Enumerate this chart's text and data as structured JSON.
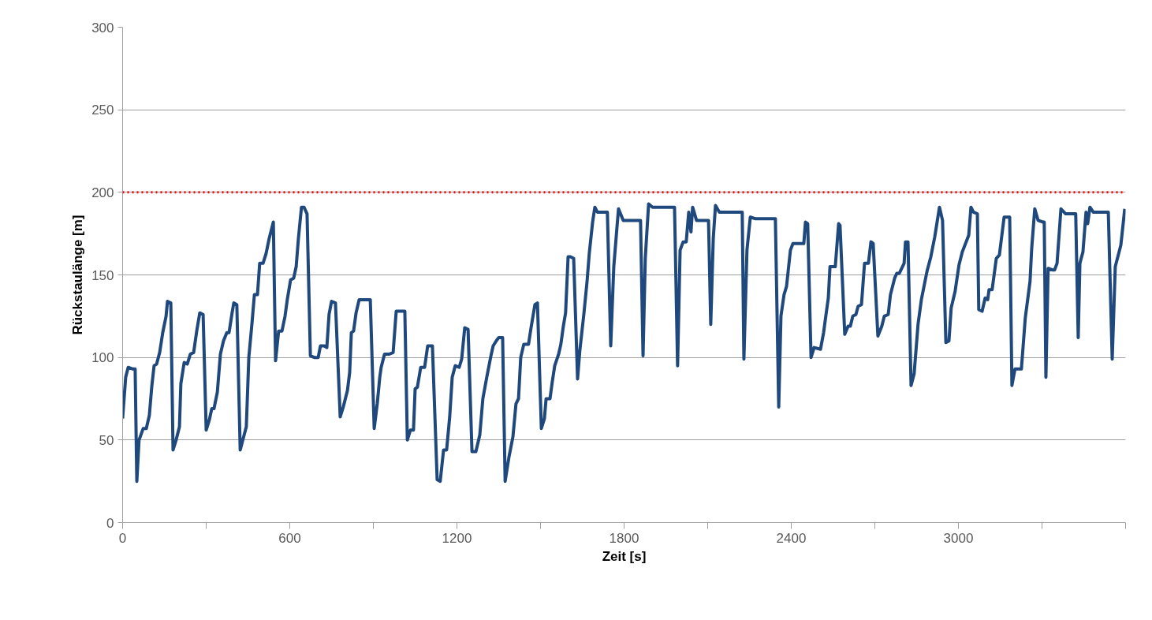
{
  "chart_data": {
    "type": "line",
    "xlabel": "Zeit [s]",
    "ylabel": "Rückstaulänge [m]",
    "xlim": [
      0,
      3600
    ],
    "ylim": [
      0,
      300
    ],
    "xticks": [
      0,
      {
        "value": 300,
        "label": null
      },
      600,
      {
        "value": 900,
        "label": null
      },
      1200,
      {
        "value": 1500,
        "label": null
      },
      1800,
      {
        "value": 2100,
        "label": null
      },
      2400,
      {
        "value": 2700,
        "label": null
      },
      3000,
      {
        "value": 3300,
        "label": null
      },
      {
        "value": 3600,
        "label": null
      }
    ],
    "yticks": [
      0,
      50,
      100,
      150,
      200,
      250,
      300
    ],
    "grid": "y",
    "marker": "none",
    "line_style": "solid",
    "ref_lines": [
      {
        "axis": "y",
        "value": 200,
        "label": null,
        "color": "#ff0000",
        "line_style": "dotted"
      }
    ],
    "series": [
      {
        "color": "#1f497d",
        "x": [
          0,
          11,
          20,
          37,
          45,
          51,
          59,
          74,
          85,
          96,
          105,
          113,
          122,
          133,
          144,
          156,
          161,
          173,
          181,
          192,
          204,
          209,
          221,
          232,
          243,
          255,
          266,
          277,
          289,
          300,
          311,
          320,
          328,
          340,
          351,
          362,
          374,
          382,
          393,
          399,
          410,
          422,
          433,
          444,
          453,
          464,
          473,
          484,
          492,
          504,
          515,
          526,
          541,
          549,
          560,
          572,
          583,
          591,
          603,
          614,
          623,
          631,
          642,
          651,
          662,
          674,
          688,
          702,
          710,
          724,
          733,
          741,
          750,
          764,
          781,
          792,
          807,
          815,
          821,
          829,
          838,
          849,
          860,
          872,
          889,
          903,
          914,
          923,
          928,
          940,
          957,
          971,
          982,
          999,
          1013,
          1022,
          1033,
          1044,
          1050,
          1058,
          1070,
          1084,
          1095,
          1112,
          1129,
          1140,
          1152,
          1163,
          1174,
          1183,
          1194,
          1208,
          1217,
          1228,
          1240,
          1254,
          1268,
          1282,
          1293,
          1307,
          1322,
          1330,
          1341,
          1350,
          1364,
          1373,
          1387,
          1401,
          1412,
          1421,
          1429,
          1440,
          1457,
          1466,
          1480,
          1489,
          1503,
          1514,
          1520,
          1534,
          1542,
          1551,
          1565,
          1573,
          1582,
          1590,
          1599,
          1607,
          1619,
          1633,
          1641,
          1656,
          1667,
          1675,
          1687,
          1695,
          1704,
          1721,
          1740,
          1752,
          1763,
          1774,
          1780,
          1797,
          1820,
          1842,
          1859,
          1868,
          1876,
          1888,
          1902,
          1924,
          1950,
          1981,
          1992,
          2001,
          2012,
          2023,
          2032,
          2040,
          2046,
          2060,
          2080,
          2103,
          2111,
          2120,
          2128,
          2142,
          2171,
          2202,
          2224,
          2230,
          2241,
          2253,
          2272,
          2301,
          2343,
          2355,
          2363,
          2374,
          2383,
          2397,
          2406,
          2425,
          2445,
          2451,
          2459,
          2471,
          2482,
          2505,
          2516,
          2524,
          2533,
          2539,
          2558,
          2570,
          2575,
          2592,
          2604,
          2612,
          2621,
          2632,
          2640,
          2652,
          2663,
          2677,
          2686,
          2694,
          2711,
          2725,
          2734,
          2748,
          2756,
          2771,
          2779,
          2788,
          2805,
          2810,
          2819,
          2830,
          2841,
          2855,
          2867,
          2887,
          2901,
          2915,
          2932,
          2943,
          2955,
          2966,
          2974,
          2988,
          3002,
          3014,
          3037,
          3045,
          3054,
          3068,
          3073,
          3085,
          3096,
          3105,
          3110,
          3121,
          3136,
          3147,
          3164,
          3175,
          3184,
          3192,
          3203,
          3226,
          3240,
          3257,
          3263,
          3274,
          3286,
          3303,
          3308,
          3314,
          3322,
          3337,
          3345,
          3354,
          3368,
          3385,
          3402,
          3421,
          3430,
          3436,
          3447,
          3458,
          3464,
          3472,
          3484,
          3504,
          3518,
          3538,
          3552,
          3563,
          3583,
          3597
        ],
        "values": [
          63,
          88,
          94,
          93,
          93,
          25,
          50,
          57,
          57,
          65,
          83,
          95,
          96,
          103,
          115,
          125,
          134,
          133,
          44,
          50,
          58,
          84,
          97,
          96,
          102,
          103,
          116,
          127,
          126,
          56,
          62,
          69,
          69,
          79,
          102,
          110,
          115,
          115,
          127,
          133,
          132,
          44,
          51,
          58,
          100,
          120,
          138,
          138,
          157,
          157,
          163,
          172,
          182,
          98,
          116,
          116,
          125,
          135,
          147,
          148,
          155,
          172,
          191,
          191,
          187,
          101,
          100,
          100,
          107,
          107,
          106,
          126,
          134,
          133,
          64,
          70,
          80,
          91,
          115,
          116,
          127,
          135,
          135,
          135,
          135,
          57,
          72,
          88,
          94,
          102,
          102,
          103,
          128,
          128,
          128,
          50,
          56,
          56,
          81,
          82,
          94,
          94,
          107,
          107,
          26,
          25,
          44,
          44,
          64,
          88,
          95,
          94,
          99,
          118,
          117,
          43,
          43,
          53,
          75,
          88,
          101,
          107,
          110,
          112,
          112,
          25,
          40,
          52,
          72,
          75,
          100,
          108,
          108,
          118,
          132,
          133,
          57,
          63,
          75,
          75,
          85,
          95,
          102,
          108,
          119,
          127,
          161,
          161,
          160,
          87,
          104,
          127,
          146,
          163,
          182,
          191,
          188,
          188,
          188,
          107,
          155,
          178,
          190,
          183,
          183,
          183,
          183,
          101,
          160,
          193,
          191,
          191,
          191,
          191,
          95,
          165,
          170,
          170,
          188,
          176,
          191,
          183,
          183,
          183,
          120,
          172,
          192,
          188,
          188,
          188,
          188,
          99,
          165,
          185,
          184,
          184,
          184,
          70,
          125,
          138,
          143,
          165,
          169,
          169,
          169,
          182,
          181,
          100,
          106,
          105,
          115,
          125,
          136,
          155,
          155,
          181,
          180,
          114,
          119,
          119,
          125,
          126,
          131,
          132,
          157,
          157,
          170,
          169,
          113,
          119,
          125,
          126,
          138,
          148,
          151,
          151,
          157,
          170,
          170,
          83,
          90,
          120,
          135,
          152,
          161,
          173,
          191,
          183,
          109,
          110,
          130,
          140,
          156,
          164,
          174,
          191,
          188,
          187,
          129,
          128,
          136,
          135,
          141,
          141,
          160,
          162,
          185,
          185,
          185,
          83,
          93,
          93,
          124,
          146,
          166,
          190,
          183,
          182,
          182,
          88,
          154,
          153,
          153,
          157,
          190,
          187,
          187,
          187,
          112,
          157,
          164,
          188,
          181,
          191,
          188,
          188,
          188,
          188,
          99,
          155,
          168,
          190
        ]
      }
    ]
  }
}
